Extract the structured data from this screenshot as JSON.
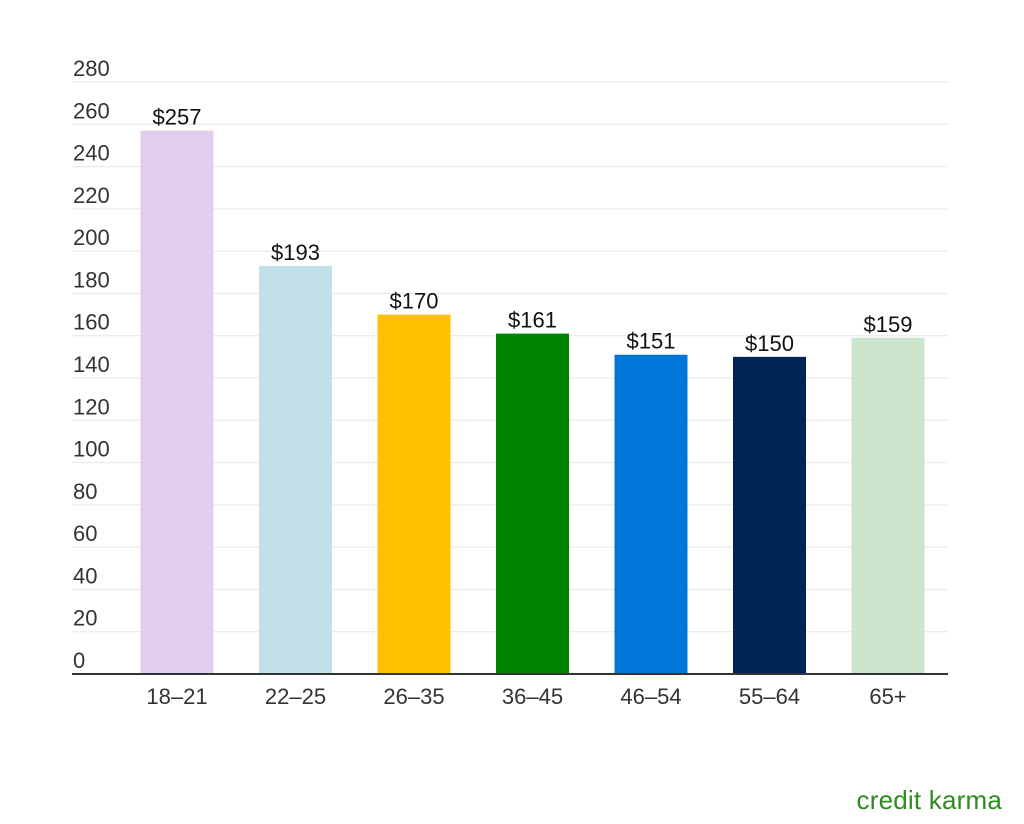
{
  "chart_data": {
    "type": "bar",
    "categories": [
      "18–21",
      "22–25",
      "26–35",
      "36–45",
      "46–54",
      "55–64",
      "65+"
    ],
    "values": [
      257,
      193,
      170,
      161,
      151,
      150,
      159
    ],
    "value_labels": [
      "$257",
      "$193",
      "$170",
      "$161",
      "$151",
      "$150",
      "$159"
    ],
    "colors": [
      "#e1cdec",
      "#c1e0ea",
      "#ffc100",
      "#008400",
      "#0277da",
      "#002456",
      "#cce5cd"
    ],
    "ylim": [
      0,
      280
    ],
    "yticks": [
      0,
      20,
      40,
      60,
      80,
      100,
      120,
      140,
      160,
      180,
      200,
      220,
      240,
      260,
      280
    ],
    "grid": true,
    "title": "",
    "xlabel": "",
    "ylabel": ""
  },
  "brand": {
    "text": "credit karma",
    "color": "#2e8b1f"
  }
}
